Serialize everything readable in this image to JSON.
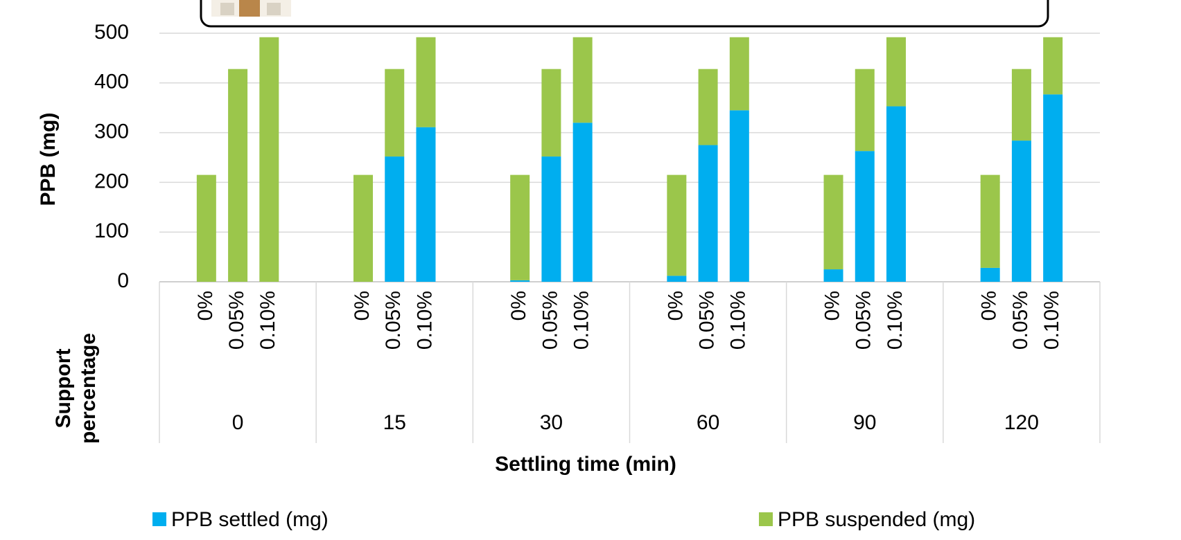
{
  "chart_data": {
    "type": "stacked-bar",
    "y_label": "PPB (mg)",
    "x_label": "Settling time (min)",
    "group_axis_label": "Support percentage",
    "groups": [
      "0",
      "15",
      "30",
      "60",
      "90",
      "120"
    ],
    "categories": [
      "0%",
      "0.05%",
      "0.10%",
      "0%",
      "0.05%",
      "0.10%",
      "0%",
      "0.05%",
      "0.10%",
      "0%",
      "0.05%",
      "0.10%",
      "0%",
      "0.05%",
      "0.10%",
      "0%",
      "0.05%",
      "0.10%"
    ],
    "series": [
      {
        "name": "PPB settled (mg)",
        "color": "#00aeef",
        "values": [
          0,
          0,
          0,
          0,
          252,
          311,
          3,
          252,
          320,
          12,
          275,
          345,
          25,
          263,
          353,
          28,
          284,
          377
        ]
      },
      {
        "name": "PPB suspended (mg)",
        "color": "#9bc64b",
        "values": [
          215,
          428,
          492,
          215,
          176,
          181,
          212,
          176,
          172,
          203,
          153,
          147,
          190,
          165,
          139,
          187,
          144,
          115
        ]
      }
    ],
    "ylim": [
      0,
      500
    ],
    "yticks": [
      0,
      100,
      200,
      300,
      400,
      500
    ],
    "grid": true,
    "legend": "bottom"
  }
}
